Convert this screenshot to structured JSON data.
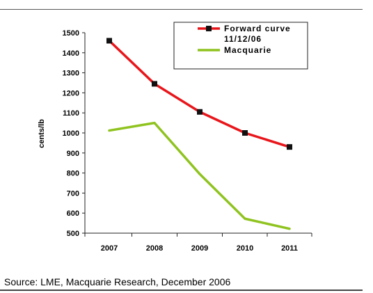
{
  "source_note": "Source: LME, Macquarie Research, December 2006",
  "colors": {
    "forward": "#e8161b",
    "macquarie": "#8fc31f",
    "marker": "#111111",
    "axis": "#222222"
  },
  "chart_data": {
    "type": "line",
    "categories": [
      "2007",
      "2008",
      "2009",
      "2010",
      "2011"
    ],
    "series": [
      {
        "name": "Forward curve 11/12/06",
        "legend_lines": [
          "Forward curve",
          "11/12/06"
        ],
        "values": [
          1460,
          1245,
          1105,
          1000,
          930
        ],
        "marker": "square"
      },
      {
        "name": "Macquarie",
        "legend_lines": [
          "Macquarie"
        ],
        "values": [
          1012,
          1050,
          795,
          572,
          522
        ],
        "marker": "none"
      }
    ],
    "ylabel": "cents/lb",
    "ylim": [
      500,
      1500
    ],
    "yticks": [
      1500,
      1400,
      1300,
      1200,
      1100,
      1000,
      900,
      800,
      700,
      600,
      500
    ],
    "grid": false,
    "legend_position": "top-right"
  }
}
